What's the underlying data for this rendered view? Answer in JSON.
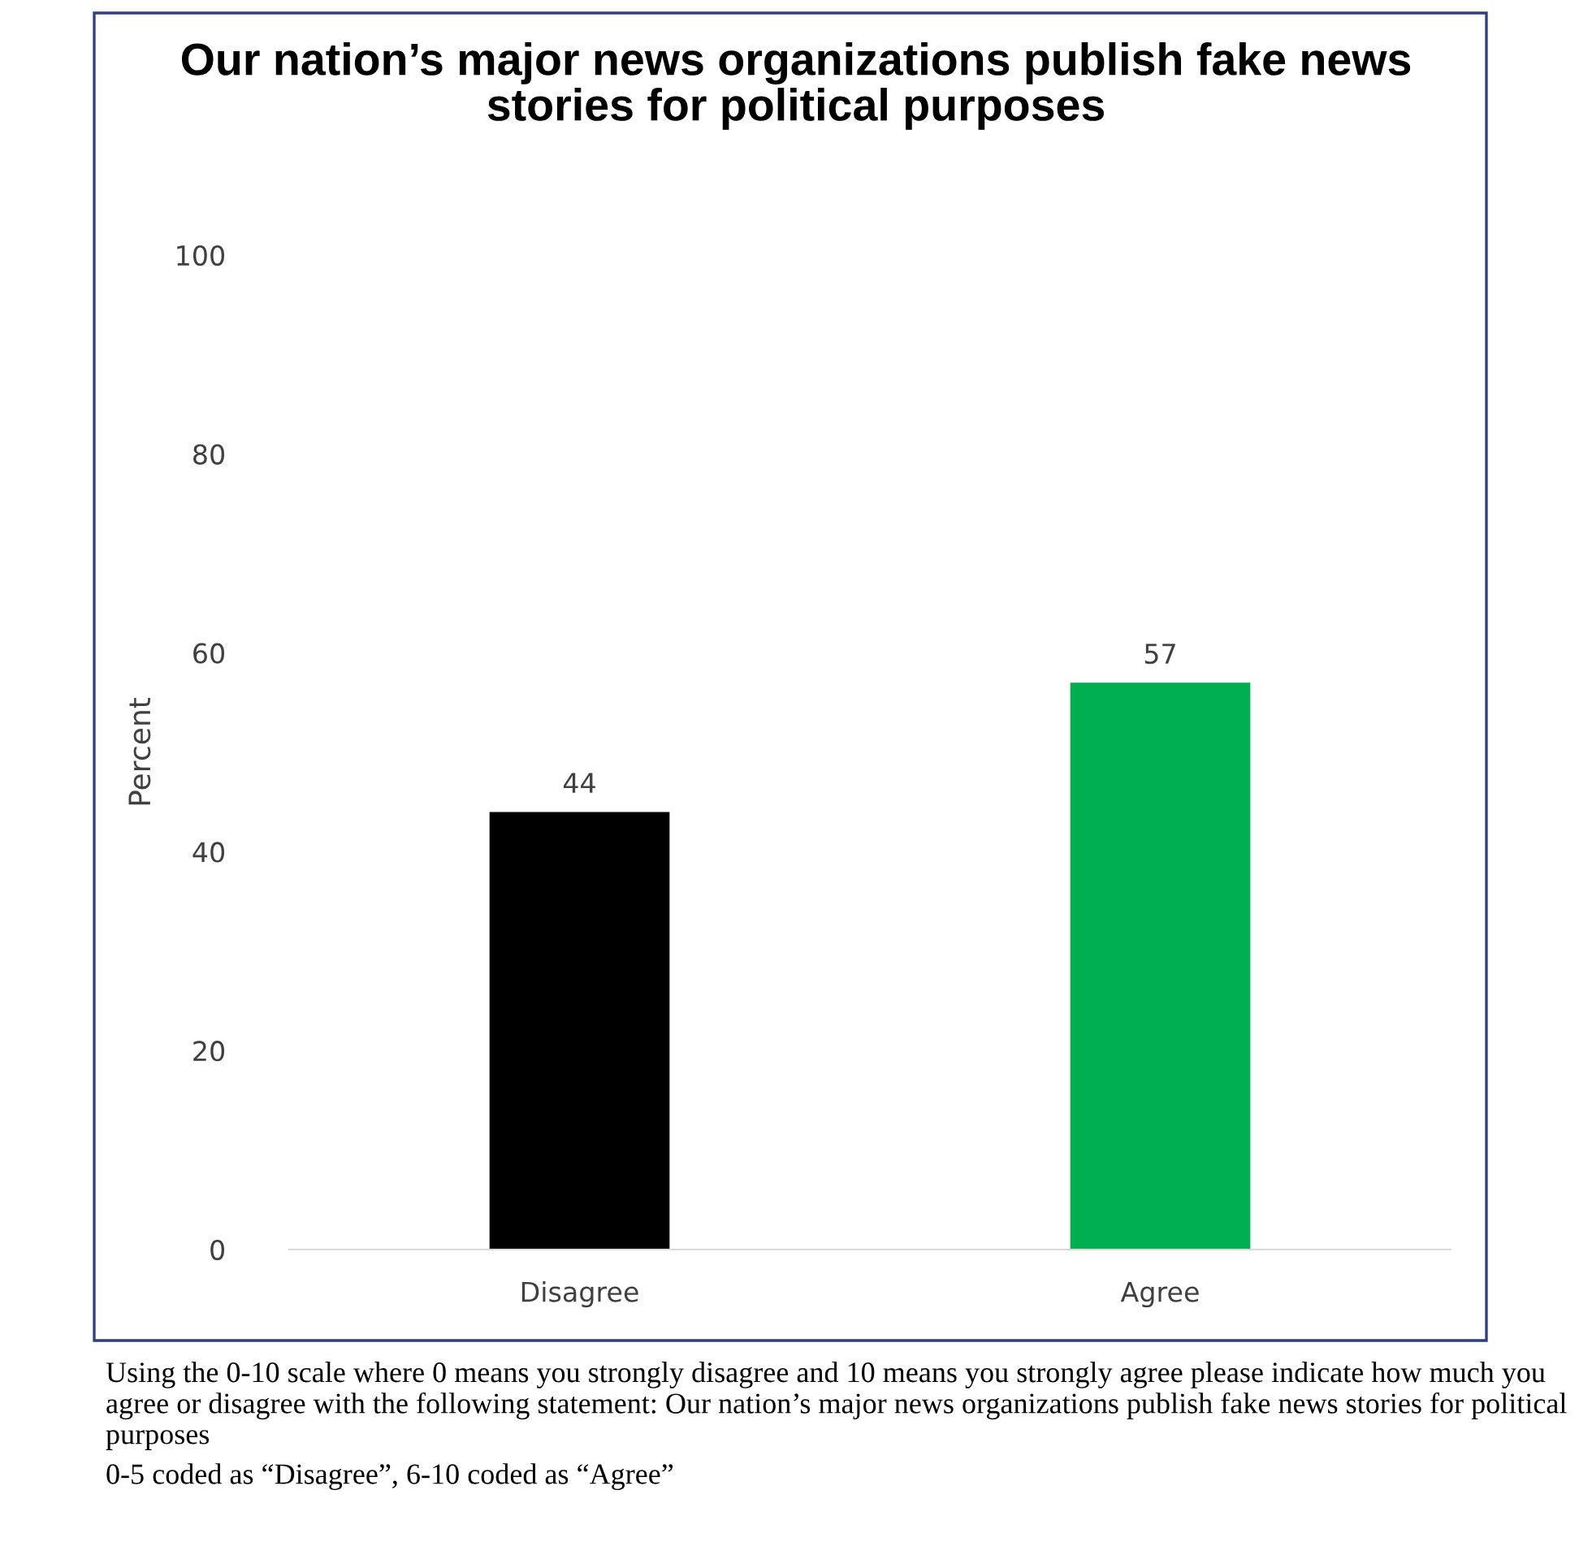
{
  "chart_data": {
    "type": "bar",
    "title": "Our nation’s major news organizations publish fake news stories for political purposes",
    "ylabel": "Percent",
    "categories": [
      "Disagree",
      "Agree"
    ],
    "values": [
      44,
      57
    ],
    "colors": [
      "#000000",
      "#00b050"
    ],
    "ylim": [
      0,
      100
    ],
    "yticks": [
      0,
      20,
      40,
      60,
      80,
      100
    ],
    "grid": false,
    "legend": false,
    "data_labels": true,
    "annotations": [
      "Using the 0-10 scale where 0 means you strongly disagree and 10 means you strongly agree please indicate how much you agree or disagree with the following statement: Our nation’s major news organizations publish fake news stories for political purposes",
      "0-5 coded as “Disagree”, 6-10 coded as “Agree”"
    ]
  }
}
